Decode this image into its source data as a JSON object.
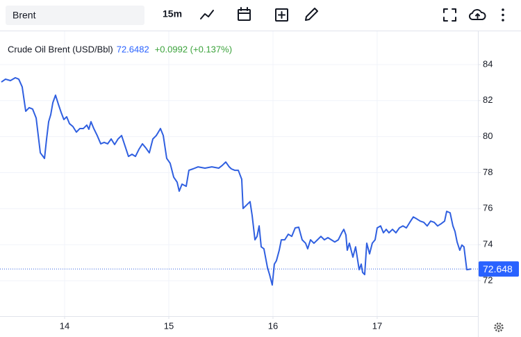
{
  "toolbar": {
    "symbol": "Brent",
    "interval": "15m"
  },
  "chart_data": {
    "type": "line",
    "title": "Crude Oil Brent (USD/Bbl)",
    "last_price": 72.6482,
    "change": "+0.0992 (+0.137%)",
    "price_label": 72.648,
    "color": "#2f5fe0",
    "x": [
      13.393,
      13.433,
      13.48,
      13.527,
      13.56,
      13.593,
      13.627,
      13.66,
      13.693,
      13.727,
      13.747,
      13.767,
      13.793,
      13.807,
      13.827,
      13.847,
      13.867,
      13.887,
      13.913,
      13.94,
      13.967,
      13.993,
      14.02,
      14.047,
      14.08,
      14.113,
      14.147,
      14.18,
      14.213,
      14.233,
      14.253,
      14.28,
      14.313,
      14.347,
      14.38,
      14.413,
      14.447,
      14.48,
      14.513,
      14.547,
      14.58,
      14.613,
      14.647,
      14.68,
      14.713,
      14.747,
      14.78,
      14.813,
      14.847,
      14.88,
      14.9,
      14.92,
      14.947,
      14.98,
      15.013,
      15.047,
      15.08,
      15.1,
      15.127,
      15.167,
      15.193,
      15.233,
      15.28,
      15.347,
      15.413,
      15.48,
      15.513,
      15.547,
      15.58,
      15.6,
      15.633,
      15.667,
      15.7,
      15.713,
      15.747,
      15.78,
      15.8,
      15.827,
      15.847,
      15.867,
      15.887,
      15.913,
      15.947,
      15.967,
      15.993,
      16.013,
      16.033,
      16.06,
      16.08,
      16.113,
      16.147,
      16.18,
      16.213,
      16.247,
      16.28,
      16.313,
      16.333,
      16.36,
      16.393,
      16.427,
      16.46,
      16.493,
      16.527,
      16.56,
      16.593,
      16.627,
      16.66,
      16.68,
      16.7,
      16.713,
      16.733,
      16.767,
      16.793,
      16.827,
      16.847,
      16.86,
      16.88,
      16.9,
      16.927,
      16.953,
      16.98,
      17.0,
      17.033,
      17.06,
      17.087,
      17.113,
      17.147,
      17.18,
      17.213,
      17.247,
      17.28,
      17.313,
      17.347,
      17.38,
      17.413,
      17.447,
      17.48,
      17.513,
      17.547,
      17.58,
      17.613,
      17.647,
      17.667,
      17.7,
      17.727,
      17.747,
      17.767,
      17.793,
      17.813,
      17.833,
      17.86,
      17.9
    ],
    "values": [
      83.03,
      83.19,
      83.11,
      83.27,
      83.19,
      82.76,
      81.41,
      81.61,
      81.53,
      81.03,
      80.06,
      79.1,
      78.9,
      78.79,
      79.87,
      80.83,
      81.22,
      81.88,
      82.3,
      81.8,
      81.34,
      80.95,
      81.1,
      80.72,
      80.56,
      80.25,
      80.45,
      80.45,
      80.64,
      80.41,
      80.83,
      80.45,
      80.06,
      79.6,
      79.68,
      79.6,
      79.87,
      79.56,
      79.87,
      80.06,
      79.48,
      78.9,
      79.02,
      78.9,
      79.29,
      79.6,
      79.37,
      79.1,
      79.87,
      80.06,
      80.25,
      80.45,
      80.06,
      78.79,
      78.52,
      77.75,
      77.47,
      76.97,
      77.36,
      77.24,
      78.13,
      78.21,
      78.32,
      78.25,
      78.32,
      78.25,
      78.4,
      78.59,
      78.32,
      78.21,
      78.13,
      78.13,
      77.63,
      76.01,
      76.2,
      76.39,
      75.62,
      74.27,
      74.46,
      75.04,
      73.88,
      73.77,
      72.73,
      72.34,
      71.76,
      72.92,
      73.11,
      73.69,
      74.27,
      74.27,
      74.58,
      74.46,
      74.93,
      74.97,
      74.27,
      74.08,
      73.77,
      74.27,
      74.08,
      74.27,
      74.46,
      74.27,
      74.39,
      74.27,
      74.15,
      74.27,
      74.66,
      74.85,
      74.54,
      73.69,
      74.08,
      73.31,
      73.88,
      72.61,
      72.92,
      72.46,
      72.34,
      74.08,
      73.49,
      74.08,
      74.27,
      74.93,
      75.04,
      74.66,
      74.85,
      74.66,
      74.85,
      74.66,
      74.93,
      75.04,
      74.93,
      75.24,
      75.54,
      75.43,
      75.31,
      75.24,
      75.04,
      75.31,
      75.24,
      75.04,
      75.16,
      75.31,
      75.85,
      75.77,
      75.04,
      74.73,
      74.15,
      73.69,
      73.98,
      73.88,
      72.61,
      72.6482
    ],
    "xlim": [
      13.38,
      17.967
    ],
    "ylim": [
      70.03,
      85.85
    ],
    "xticks": [
      14,
      15,
      16,
      17
    ],
    "yticks": [
      72,
      74,
      76,
      78,
      80,
      82,
      84
    ],
    "grid": true
  }
}
